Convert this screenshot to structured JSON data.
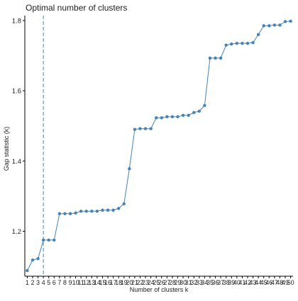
{
  "chart_data": {
    "type": "line",
    "title": "Optimal number of clusters",
    "xlabel": "Number of clusters k",
    "ylabel": "Gap statistic (k)",
    "x": [
      1,
      2,
      3,
      4,
      5,
      6,
      7,
      8,
      9,
      10,
      11,
      12,
      13,
      14,
      15,
      16,
      17,
      18,
      19,
      20,
      21,
      22,
      23,
      24,
      25,
      26,
      27,
      28,
      29,
      30,
      31,
      32,
      33,
      34,
      35,
      36,
      37,
      38,
      39,
      40,
      41,
      42,
      43,
      44,
      45,
      46,
      47,
      48,
      49,
      50
    ],
    "categories": [
      "1",
      "2",
      "3",
      "4",
      "5",
      "6",
      "7",
      "8",
      "9",
      "10",
      "11",
      "12",
      "13",
      "14",
      "15",
      "16",
      "17",
      "18",
      "19",
      "20",
      "21",
      "22",
      "23",
      "24",
      "25",
      "26",
      "27",
      "28",
      "29",
      "30",
      "31",
      "32",
      "33",
      "34",
      "35",
      "36",
      "37",
      "38",
      "39",
      "40",
      "41",
      "42",
      "43",
      "44",
      "45",
      "46",
      "47",
      "48",
      "49",
      "50"
    ],
    "series": [
      {
        "values": [
          1.088,
          1.118,
          1.122,
          1.175,
          1.175,
          1.175,
          1.25,
          1.25,
          1.25,
          1.252,
          1.257,
          1.257,
          1.257,
          1.257,
          1.26,
          1.26,
          1.26,
          1.265,
          1.278,
          1.378,
          1.49,
          1.492,
          1.492,
          1.492,
          1.523,
          1.523,
          1.526,
          1.526,
          1.526,
          1.53,
          1.53,
          1.538,
          1.542,
          1.558,
          1.693,
          1.693,
          1.693,
          1.73,
          1.733,
          1.735,
          1.735,
          1.735,
          1.737,
          1.76,
          1.785,
          1.785,
          1.787,
          1.787,
          1.797,
          1.798
        ]
      }
    ],
    "reference_line": {
      "x": 4
    },
    "yticks": [
      1.2,
      1.4,
      1.6,
      1.8
    ],
    "ylim": [
      1.072,
      1.814
    ],
    "xlim": [
      0.55,
      50.45
    ],
    "grid": false,
    "colors": {
      "line": "#4682B4",
      "point": "#4682B4",
      "reference_line": "#4682B4",
      "axis": "#000000",
      "text": "#222222"
    }
  }
}
